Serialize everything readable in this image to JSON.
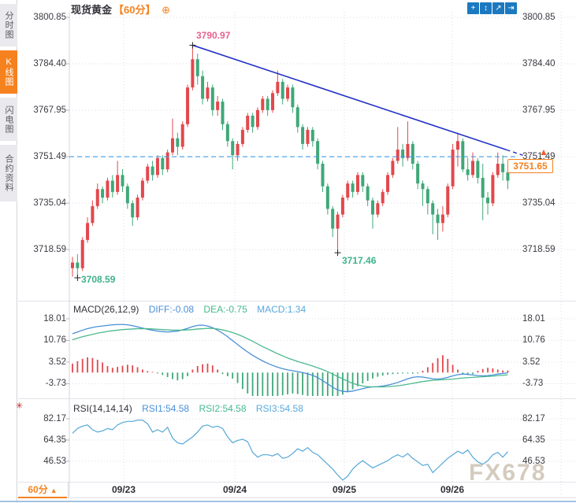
{
  "header": {
    "title": "现货黄金",
    "interval_tag": "【60分】",
    "add_icon": "⊕"
  },
  "toolbar": {
    "icons": [
      {
        "name": "pan",
        "glyph": "+"
      },
      {
        "name": "fit-vertical",
        "glyph": "↕"
      },
      {
        "name": "fit-horizontal",
        "glyph": "↗"
      },
      {
        "name": "exit",
        "glyph": "⇥"
      }
    ]
  },
  "sidebar": {
    "tabs": [
      {
        "label": "分时图",
        "active": false
      },
      {
        "label": "K线图",
        "active": true
      },
      {
        "label": "闪电图",
        "active": false
      },
      {
        "label": "合约资料",
        "active": false
      }
    ]
  },
  "main_chart": {
    "y_labels": [
      "3800.85",
      "3784.40",
      "3767.95",
      "3751.49",
      "3735.04",
      "3718.59"
    ],
    "x_labels": [
      "09/23",
      "09/24",
      "09/25",
      "09/26"
    ],
    "annotations": {
      "high": "3790.97",
      "low_start": "3708.59",
      "low_mid": "3717.46"
    },
    "last_price": "3751.65",
    "dashed_price": "3751.49",
    "arrow_up": "▲"
  },
  "macd": {
    "title": "MACD(26,12,9)",
    "diff_label": "DIFF:-0.08",
    "dea_label": "DEA:-0.75",
    "macd_label": "MACD:1.34",
    "y_labels": [
      "18.01",
      "10.76",
      "3.52",
      "-3.73"
    ]
  },
  "rsi": {
    "title": "RSI(14,14,14)",
    "rsi1_label": "RSI1:54.58",
    "rsi2_label": "RSI2:54.58",
    "rsi3_label": "RSI3:54.58",
    "y_labels": [
      "82.17",
      "64.35",
      "46.53"
    ],
    "settings_icon": "✳"
  },
  "footer": {
    "interval_button": "60分",
    "arrow": "▲"
  },
  "watermark": "FX678",
  "colors": {
    "accent_orange": "#f5821f",
    "up_candle": "#e2484d",
    "down_candle": "#3fa878",
    "diff_line": "#4a8fd8",
    "dea_line": "#4cb98e",
    "rsi_line": "#55a7d8",
    "trend_line": "#2131c4",
    "price_line": "#3e9de8",
    "icon_blue": "#1b79c0",
    "high_label": "#e7628d",
    "low_label": "#3db389",
    "grid": "#dcdce6",
    "axis": "#d6d6e0"
  },
  "chart_data": [
    {
      "type": "candlestick",
      "title": "现货黄金 60分",
      "y_ticks": [
        3800.85,
        3784.4,
        3767.95,
        3751.49,
        3735.04,
        3718.59
      ],
      "x_labels": [
        "09/23",
        "09/24",
        "09/25",
        "09/26"
      ],
      "high_annotation": 3790.97,
      "low_annotations": [
        3708.59,
        3717.46
      ],
      "last_price": 3751.65,
      "dashed_price_line": 3751.49,
      "markers": [
        {
          "index": 24,
          "price": 3790.97
        },
        {
          "index": 1,
          "price": 3708.59
        },
        {
          "index": 53,
          "price": 3717.46
        }
      ],
      "trend_line": {
        "start_index": 24,
        "start_price": 3790.97,
        "end_index": 90,
        "end_price": 3752.0
      },
      "candles": [
        [
          3712,
          3716,
          3709,
          3714
        ],
        [
          3714,
          3717,
          3708.59,
          3712
        ],
        [
          3712,
          3723,
          3711,
          3722
        ],
        [
          3722,
          3730,
          3721,
          3728
        ],
        [
          3728,
          3736,
          3727,
          3734
        ],
        [
          3734,
          3742,
          3733,
          3740
        ],
        [
          3740,
          3741,
          3735,
          3737
        ],
        [
          3737,
          3744,
          3736,
          3743
        ],
        [
          3743,
          3745,
          3737,
          3739
        ],
        [
          3739,
          3750,
          3738,
          3745
        ],
        [
          3745,
          3747,
          3739,
          3741
        ],
        [
          3741,
          3742,
          3733,
          3735
        ],
        [
          3735,
          3736,
          3727,
          3730
        ],
        [
          3730,
          3738,
          3729,
          3737
        ],
        [
          3737,
          3744,
          3736,
          3743
        ],
        [
          3743,
          3749,
          3742,
          3748
        ],
        [
          3748,
          3750,
          3743,
          3745
        ],
        [
          3745,
          3752,
          3744,
          3751
        ],
        [
          3751,
          3752,
          3745,
          3747
        ],
        [
          3747,
          3754,
          3746,
          3753
        ],
        [
          3753,
          3765,
          3752,
          3758
        ],
        [
          3758,
          3760,
          3752,
          3755
        ],
        [
          3755,
          3764,
          3754,
          3763
        ],
        [
          3763,
          3777,
          3762,
          3776
        ],
        [
          3776,
          3790.97,
          3775,
          3786
        ],
        [
          3786,
          3788,
          3777,
          3780
        ],
        [
          3780,
          3782,
          3770,
          3772
        ],
        [
          3772,
          3778,
          3771,
          3776
        ],
        [
          3776,
          3777,
          3766,
          3768
        ],
        [
          3768,
          3773,
          3766,
          3771
        ],
        [
          3771,
          3772,
          3761,
          3763
        ],
        [
          3763,
          3764,
          3755,
          3757
        ],
        [
          3757,
          3758,
          3747,
          3752
        ],
        [
          3752,
          3757,
          3750,
          3756
        ],
        [
          3756,
          3762,
          3755,
          3761
        ],
        [
          3761,
          3767,
          3760,
          3766
        ],
        [
          3766,
          3767,
          3760,
          3762
        ],
        [
          3762,
          3769,
          3761,
          3768
        ],
        [
          3768,
          3773,
          3767,
          3772
        ],
        [
          3772,
          3773,
          3766,
          3768
        ],
        [
          3768,
          3775,
          3767,
          3774
        ],
        [
          3774,
          3782,
          3773,
          3778
        ],
        [
          3778,
          3779,
          3770,
          3772
        ],
        [
          3772,
          3777,
          3771,
          3776
        ],
        [
          3776,
          3777,
          3767,
          3769
        ],
        [
          3769,
          3770,
          3760,
          3762
        ],
        [
          3762,
          3763,
          3754,
          3756
        ],
        [
          3756,
          3762,
          3755,
          3761
        ],
        [
          3761,
          3762,
          3755,
          3757
        ],
        [
          3757,
          3758,
          3747,
          3749
        ],
        [
          3749,
          3750,
          3739,
          3741
        ],
        [
          3741,
          3742,
          3731,
          3733
        ],
        [
          3733,
          3734,
          3723,
          3726
        ],
        [
          3726,
          3732,
          3717.46,
          3731
        ],
        [
          3731,
          3738,
          3730,
          3737
        ],
        [
          3737,
          3743,
          3736,
          3742
        ],
        [
          3742,
          3743,
          3737,
          3739
        ],
        [
          3739,
          3746,
          3738,
          3745
        ],
        [
          3745,
          3746,
          3739,
          3741
        ],
        [
          3741,
          3742,
          3734,
          3736
        ],
        [
          3736,
          3737,
          3726,
          3731
        ],
        [
          3731,
          3736,
          3730,
          3735
        ],
        [
          3735,
          3740,
          3734,
          3739
        ],
        [
          3739,
          3746,
          3738,
          3745
        ],
        [
          3745,
          3751,
          3744,
          3750
        ],
        [
          3750,
          3762,
          3749,
          3754
        ],
        [
          3754,
          3756,
          3748,
          3751
        ],
        [
          3751,
          3764,
          3750,
          3756
        ],
        [
          3756,
          3757,
          3747,
          3749
        ],
        [
          3749,
          3750,
          3740,
          3742
        ],
        [
          3742,
          3743,
          3734,
          3740
        ],
        [
          3740,
          3741,
          3731,
          3735
        ],
        [
          3735,
          3736,
          3724,
          3731
        ],
        [
          3731,
          3733,
          3722,
          3728
        ],
        [
          3728,
          3734,
          3725,
          3731
        ],
        [
          3731,
          3742,
          3730,
          3741
        ],
        [
          3741,
          3756,
          3740,
          3754
        ],
        [
          3754,
          3760,
          3748,
          3757
        ],
        [
          3757,
          3758,
          3746,
          3747
        ],
        [
          3747,
          3751,
          3743,
          3745
        ],
        [
          3745,
          3753,
          3744,
          3750
        ],
        [
          3750,
          3751,
          3742,
          3744
        ],
        [
          3744,
          3749,
          3729,
          3737
        ],
        [
          3737,
          3739,
          3731,
          3735
        ],
        [
          3735,
          3746,
          3734,
          3745
        ],
        [
          3745,
          3753,
          3744,
          3749
        ],
        [
          3749,
          3752,
          3743,
          3746
        ],
        [
          3746,
          3748,
          3740,
          3743
        ]
      ]
    },
    {
      "type": "bar+line",
      "name": "MACD",
      "params": "26,12,9",
      "diff": -0.08,
      "dea": -0.75,
      "macd": 1.34,
      "y_ticks": [
        18.01,
        10.76,
        3.52,
        -3.73
      ],
      "hist": [
        3.0,
        3.8,
        4.6,
        5.1,
        4.9,
        4.3,
        3.4,
        2.2,
        1.6,
        1.9,
        2.3,
        2.6,
        2.4,
        1.8,
        1.0,
        0.5,
        0.2,
        -0.3,
        -0.8,
        -1.5,
        -2.2,
        -2.6,
        -2.2,
        -1.2,
        1.0,
        2.2,
        2.8,
        3.0,
        2.4,
        1.0,
        -0.5,
        -1.2,
        -2.0,
        -3.5,
        -5.5,
        -7.0,
        -8.2,
        -8.8,
        -9.0,
        -8.8,
        -8.4,
        -8.0,
        -7.6,
        -7.3,
        -7.0,
        -7.2,
        -7.5,
        -7.8,
        -8.0,
        -8.3,
        -8.5,
        -8.6,
        -8.4,
        -8.0,
        -7.4,
        -6.6,
        -5.6,
        -4.6,
        -3.6,
        -2.8,
        -2.0,
        -1.4,
        -1.0,
        -0.7,
        -0.5,
        -0.4,
        -0.3,
        -0.3,
        -0.4,
        -0.3,
        0.6,
        1.8,
        3.2,
        4.8,
        5.8,
        4.6,
        2.6,
        1.0,
        -0.4,
        -0.8,
        -0.5,
        0.6,
        1.2,
        1.6,
        1.4,
        1.0,
        0.7,
        0.7
      ],
      "diff_series": [
        13.0,
        13.6,
        14.2,
        14.7,
        15.1,
        15.4,
        15.6,
        15.8,
        16.0,
        16.1,
        16.1,
        16.0,
        15.7,
        15.3,
        14.9,
        14.5,
        14.2,
        13.9,
        13.7,
        13.6,
        13.7,
        13.9,
        14.3,
        14.8,
        15.4,
        15.8,
        15.9,
        15.6,
        15.0,
        14.2,
        13.2,
        12.0,
        10.7,
        9.4,
        8.1,
        6.9,
        5.8,
        4.8,
        3.9,
        3.1,
        2.4,
        1.8,
        1.3,
        0.9,
        0.6,
        0.3,
        0.0,
        -0.4,
        -0.9,
        -1.7,
        -2.7,
        -3.8,
        -4.9,
        -5.8,
        -6.3,
        -6.4,
        -6.2,
        -5.8,
        -5.4,
        -5.0,
        -4.8,
        -4.7,
        -4.5,
        -4.2,
        -3.8,
        -3.3,
        -2.7,
        -2.1,
        -1.6,
        -1.4,
        -1.5,
        -1.8,
        -2.1,
        -2.2,
        -2.0,
        -1.6,
        -1.1,
        -0.7,
        -0.5,
        -0.6,
        -0.8,
        -1.0,
        -1.1,
        -1.0,
        -0.8,
        -0.5,
        -0.3,
        -0.08
      ],
      "dea_series": [
        11.0,
        11.5,
        12.0,
        12.4,
        12.8,
        13.2,
        13.5,
        13.8,
        14.0,
        14.2,
        14.4,
        14.5,
        14.6,
        14.7,
        14.7,
        14.7,
        14.6,
        14.5,
        14.4,
        14.3,
        14.2,
        14.2,
        14.2,
        14.3,
        14.4,
        14.6,
        14.7,
        14.8,
        14.8,
        14.6,
        14.3,
        13.9,
        13.4,
        12.8,
        12.1,
        11.3,
        10.5,
        9.6,
        8.7,
        7.9,
        7.1,
        6.3,
        5.6,
        4.9,
        4.3,
        3.7,
        3.2,
        2.7,
        2.2,
        1.6,
        1.0,
        0.3,
        -0.5,
        -1.3,
        -2.1,
        -2.9,
        -3.6,
        -4.1,
        -4.5,
        -4.7,
        -4.8,
        -4.8,
        -4.8,
        -4.7,
        -4.6,
        -4.4,
        -4.2,
        -3.9,
        -3.6,
        -3.3,
        -3.0,
        -2.8,
        -2.6,
        -2.5,
        -2.4,
        -2.3,
        -2.2,
        -2.0,
        -1.8,
        -1.7,
        -1.6,
        -1.5,
        -1.4,
        -1.3,
        -1.2,
        -1.0,
        -0.9,
        -0.75
      ]
    },
    {
      "type": "line",
      "name": "RSI",
      "params": "14,14,14",
      "current": 54.58,
      "y_ticks": [
        82.17,
        64.35,
        46.53
      ],
      "values": [
        70,
        74,
        76,
        77,
        73,
        71,
        72,
        74,
        73,
        77,
        79,
        80,
        80,
        81,
        81,
        78,
        71,
        73,
        71,
        75,
        66,
        62,
        61,
        64,
        67,
        71,
        76,
        77,
        75,
        76,
        74,
        67,
        62,
        64,
        65,
        63,
        54,
        50,
        52,
        52,
        51,
        53,
        49,
        50,
        53,
        57,
        55,
        58,
        54,
        52,
        48,
        44,
        40,
        35,
        30,
        34,
        40,
        44,
        47,
        44,
        41,
        43,
        45,
        47,
        50,
        52,
        50,
        53,
        49,
        46,
        43,
        44,
        37,
        41,
        45,
        49,
        52,
        55,
        53,
        56,
        50,
        46,
        44,
        47,
        52,
        54,
        50,
        54.58
      ]
    }
  ]
}
